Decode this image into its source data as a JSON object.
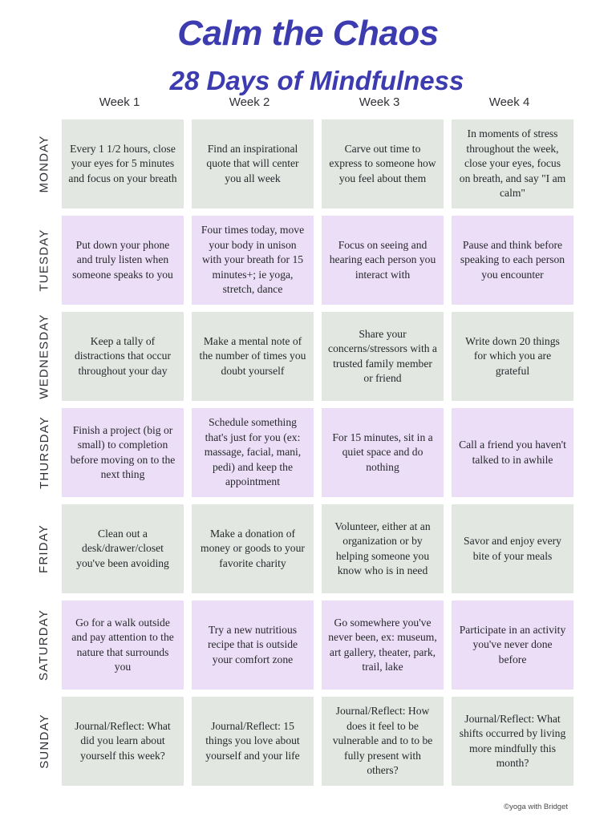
{
  "title": "Calm the Chaos",
  "subtitle": "28 Days of Mindfulness",
  "weeks": [
    "Week 1",
    "Week 2",
    "Week 3",
    "Week 4"
  ],
  "days": [
    "MONDAY",
    "TUESDAY",
    "WEDNESDAY",
    "THURSDAY",
    "FRIDAY",
    "SATURDAY",
    "SUNDAY"
  ],
  "rows": [
    [
      "Every 1 1/2 hours, close your eyes for 5 minutes and focus on your breath",
      "Find an inspirational quote that will center you all week",
      "Carve out time to express to someone how you feel about them",
      "In moments of stress throughout the week, close your eyes, focus on breath, and say \"I am calm\""
    ],
    [
      "Put down your phone and truly listen when someone speaks to you",
      "Four times today, move your body in unison with your breath for 15 minutes+; ie yoga, stretch, dance",
      "Focus on seeing and hearing each person you interact with",
      "Pause and think before speaking to each person you encounter"
    ],
    [
      "Keep a tally of distractions that occur throughout your day",
      "Make a mental note of the number of times you doubt yourself",
      "Share your concerns/stressors with a trusted family member or friend",
      "Write down 20 things for which you are grateful"
    ],
    [
      "Finish a project (big or small) to completion before moving on to the next thing",
      "Schedule something that's just for you (ex: massage, facial, mani, pedi) and keep the appointment",
      "For 15 minutes, sit in a quiet space and do nothing",
      "Call a friend you haven't talked to in awhile"
    ],
    [
      "Clean out a desk/drawer/closet you've been avoiding",
      "Make a donation of money or goods to your favorite charity",
      "Volunteer, either at an organization or by helping someone you know who is in need",
      "Savor and enjoy every bite of your meals"
    ],
    [
      "Go for a walk outside and pay attention to the nature that surrounds you",
      "Try a new nutritious recipe that is outside your comfort zone",
      "Go somewhere you've never been, ex: museum, art gallery, theater, park, trail, lake",
      "Participate in an activity you've never done before"
    ],
    [
      "Journal/Reflect: What did you learn about yourself this week?",
      "Journal/Reflect: 15 things you love about yourself and your life",
      "Journal/Reflect: How does it feel to be vulnerable and to to be fully present with others?",
      "Journal/Reflect: What shifts occurred by living more mindfully this month?"
    ]
  ],
  "footer": "©yoga with Bridget",
  "colors": {
    "title": "#3d3bb0",
    "cell_green": "#e2e7e1",
    "cell_purple": "#ecdef7"
  }
}
